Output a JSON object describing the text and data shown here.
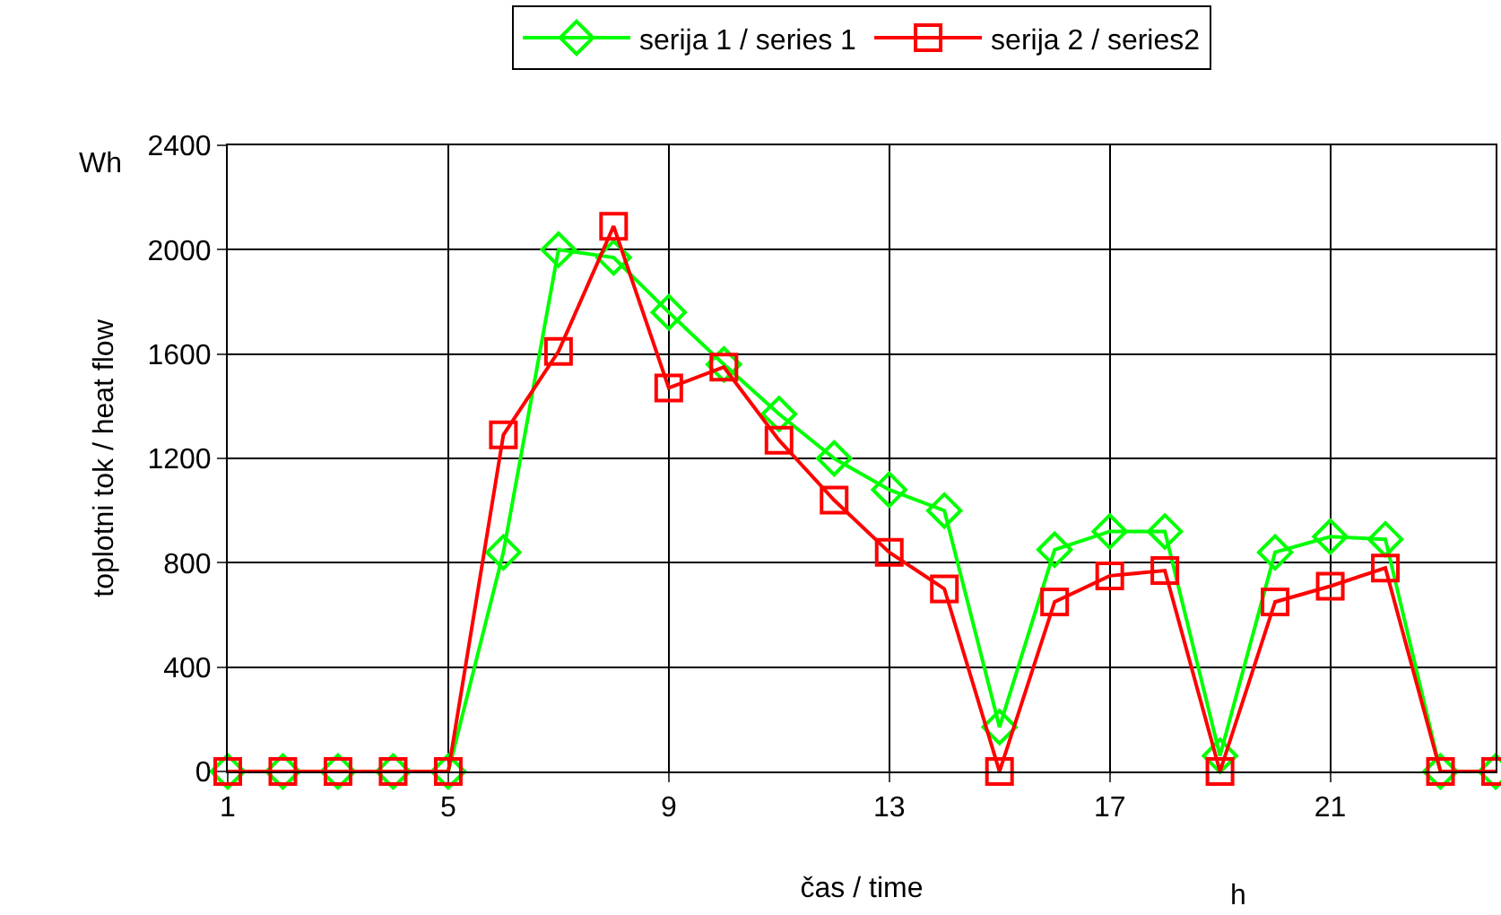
{
  "chart_data": {
    "type": "line",
    "xlabel": "čas / time",
    "ylabel": "toplotni tok / heat flow",
    "annotations": [
      "Wh",
      "h"
    ],
    "x": [
      1,
      2,
      3,
      4,
      5,
      6,
      7,
      8,
      9,
      10,
      11,
      12,
      13,
      14,
      15,
      16,
      17,
      18,
      19,
      20,
      21,
      22,
      23,
      24
    ],
    "series": [
      {
        "name": "serija 1 / series 1",
        "color": "#00ff00",
        "marker": "diamond",
        "values": [
          0,
          0,
          0,
          0,
          0,
          840,
          2000,
          1970,
          1760,
          1560,
          1370,
          1200,
          1080,
          1000,
          170,
          850,
          920,
          920,
          60,
          840,
          900,
          890,
          0,
          0
        ]
      },
      {
        "name": "serija 2 / series2",
        "color": "#ff0000",
        "marker": "square",
        "values": [
          0,
          0,
          0,
          0,
          0,
          1290,
          1610,
          2090,
          1470,
          1550,
          1270,
          1040,
          840,
          700,
          0,
          650,
          750,
          770,
          0,
          650,
          710,
          780,
          0,
          0
        ]
      }
    ],
    "xlim": [
      1,
      24
    ],
    "xticks": [
      1,
      5,
      9,
      13,
      17,
      21
    ],
    "ylim": [
      0,
      2400
    ],
    "yticks": [
      0,
      400,
      800,
      1200,
      1600,
      2000,
      2400
    ],
    "grid": true,
    "legend": "top",
    "line_style": "solid"
  }
}
